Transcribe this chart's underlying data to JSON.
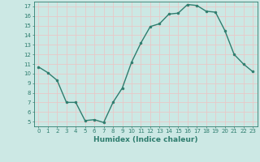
{
  "x": [
    0,
    1,
    2,
    3,
    4,
    5,
    6,
    7,
    8,
    9,
    10,
    11,
    12,
    13,
    14,
    15,
    16,
    17,
    18,
    19,
    20,
    21,
    22,
    23
  ],
  "y": [
    10.7,
    10.1,
    9.3,
    7.0,
    7.0,
    5.1,
    5.2,
    4.9,
    7.0,
    8.5,
    11.2,
    13.2,
    14.9,
    15.2,
    16.2,
    16.3,
    17.2,
    17.1,
    16.5,
    16.4,
    14.5,
    12.0,
    11.0,
    10.2
  ],
  "xlabel": "Humidex (Indice chaleur)",
  "line_color": "#2e7d6e",
  "marker_color": "#2e7d6e",
  "bg_color": "#cce8e4",
  "grid_color": "#e8c8c8",
  "axis_color": "#2e7d6e",
  "tick_color": "#2e7d6e",
  "xlim": [
    -0.5,
    23.5
  ],
  "ylim": [
    4.5,
    17.5
  ],
  "yticks": [
    5,
    6,
    7,
    8,
    9,
    10,
    11,
    12,
    13,
    14,
    15,
    16,
    17
  ],
  "xticks": [
    0,
    1,
    2,
    3,
    4,
    5,
    6,
    7,
    8,
    9,
    10,
    11,
    12,
    13,
    14,
    15,
    16,
    17,
    18,
    19,
    20,
    21,
    22,
    23
  ],
  "tick_fontsize": 5.0,
  "xlabel_fontsize": 6.5,
  "linewidth": 1.0,
  "markersize": 2.0
}
